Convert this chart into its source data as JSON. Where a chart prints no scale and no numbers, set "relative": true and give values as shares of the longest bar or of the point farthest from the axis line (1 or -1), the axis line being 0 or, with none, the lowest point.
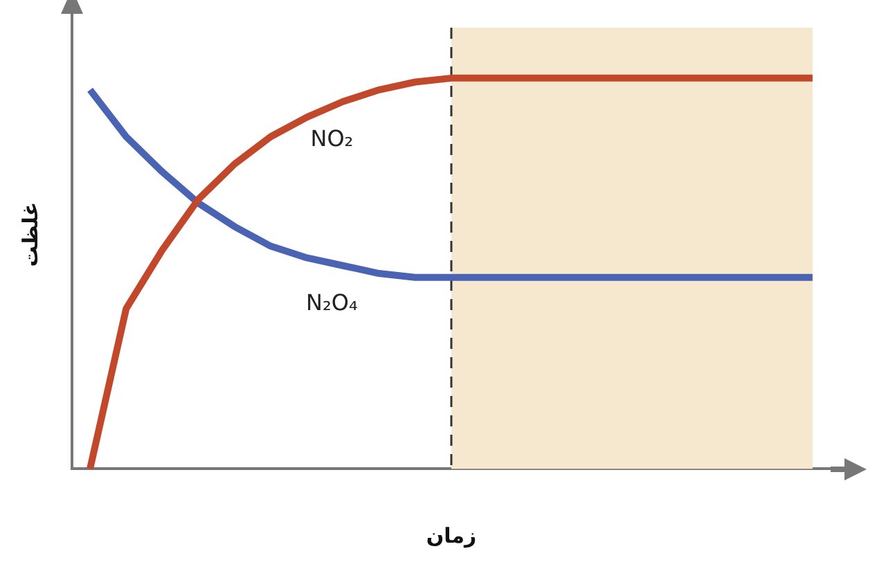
{
  "chart_data": {
    "type": "line",
    "relative": true,
    "xlabel": "زمان",
    "ylabel": "غلظت",
    "categories": [
      null,
      null,
      null,
      null,
      null,
      null,
      null,
      null,
      null,
      null,
      null,
      null,
      null,
      null,
      null,
      null,
      null,
      null,
      null,
      null,
      null
    ],
    "series": [
      {
        "name": "NO₂",
        "color": "#c2482b",
        "values": [
          0,
          0.41,
          0.56,
          0.69,
          0.78,
          0.85,
          0.9,
          0.94,
          0.97,
          0.99,
          1,
          1,
          1,
          1,
          1,
          1,
          1,
          1,
          1,
          1,
          1
        ]
      },
      {
        "name": "N₂O₄",
        "color": "#4a63b2",
        "values": [
          0.97,
          0.85,
          0.76,
          0.68,
          0.62,
          0.57,
          0.54,
          0.52,
          0.5,
          0.49,
          0.49,
          0.49,
          0.49,
          0.49,
          0.49,
          0.49,
          0.49,
          0.49,
          0.49,
          0.49,
          0.49
        ]
      }
    ],
    "grid": false,
    "legend": false,
    "marker": "none",
    "line_style": "solid"
  }
}
